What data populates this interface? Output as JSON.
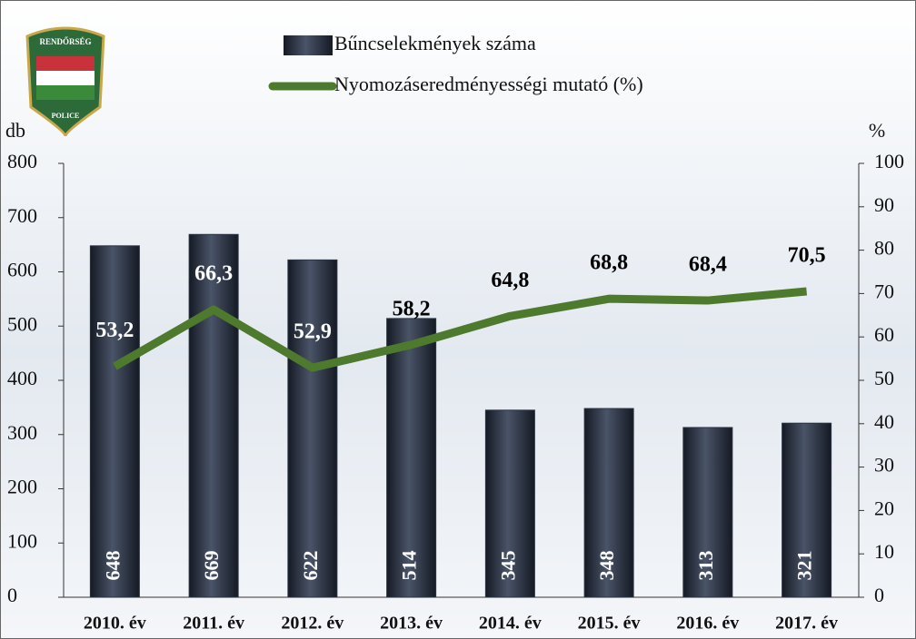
{
  "chart_data": {
    "type": "combo",
    "categories": [
      "2010. év",
      "2011. év",
      "2012. év",
      "2013. év",
      "2014. év",
      "2015. év",
      "2016. év",
      "2017. év"
    ],
    "series": [
      {
        "name": "Bűncselekmények száma",
        "type": "bar",
        "color": "#2b3344",
        "axis": "y",
        "values": [
          648,
          669,
          622,
          514,
          345,
          348,
          313,
          321
        ]
      },
      {
        "name": "Nyomozáseredményességi mutató (%)",
        "type": "line",
        "color": "#4e7a2e",
        "axis": "y2",
        "values": [
          53.2,
          66.3,
          52.9,
          58.2,
          64.8,
          68.8,
          68.4,
          70.5
        ],
        "value_labels": [
          "53,2",
          "66,3",
          "52,9",
          "58,2",
          "64,8",
          "68,8",
          "68,4",
          "70,5"
        ]
      }
    ],
    "y_label": "db",
    "y2_label": "%",
    "ylim": [
      0,
      800
    ],
    "yticks": [
      0,
      100,
      200,
      300,
      400,
      500,
      600,
      700,
      800
    ],
    "y2lim": [
      0,
      100
    ],
    "y2ticks": [
      0,
      10,
      20,
      30,
      40,
      50,
      60,
      70,
      80,
      90,
      100
    ]
  },
  "logo": {
    "top": "RENDŐRSÉG",
    "bottom": "POLICE"
  }
}
